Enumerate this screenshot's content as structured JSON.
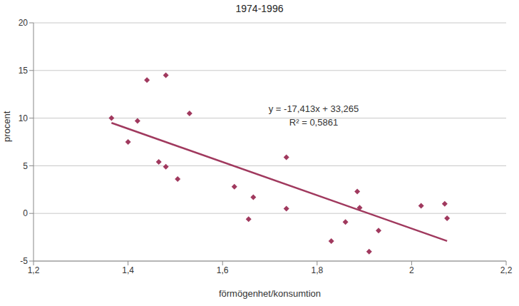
{
  "chart_data": {
    "type": "scatter",
    "title": "1974-1996",
    "x_label": "förmögenhet/konsumtion",
    "y_label": "procent",
    "annotations": [
      "y = -17,413x + 33,265",
      "R² = 0,5861"
    ],
    "series": [
      {
        "type": "scatter",
        "marker": "diamond",
        "color": "#a0395e",
        "x": [
          1.365,
          1.4,
          1.42,
          1.44,
          1.465,
          1.48,
          1.48,
          1.505,
          1.53,
          1.625,
          1.655,
          1.665,
          1.735,
          1.735,
          1.83,
          1.86,
          1.885,
          1.89,
          1.91,
          1.93,
          2.02,
          2.07,
          2.075
        ],
        "values": [
          10.0,
          7.5,
          9.7,
          14.0,
          5.4,
          4.9,
          14.5,
          3.6,
          10.5,
          2.8,
          -0.6,
          1.7,
          5.9,
          0.5,
          -2.9,
          -0.9,
          2.3,
          0.6,
          -4.0,
          -1.8,
          0.8,
          1.0,
          -0.5
        ]
      },
      {
        "type": "line",
        "line_style": "solid",
        "color": "#a0395e",
        "x": [
          1.365,
          2.075
        ],
        "values": [
          9.5,
          -2.9
        ]
      }
    ],
    "xlim": [
      1.2,
      2.2
    ],
    "xticks": [
      {
        "value": 1.2,
        "label": "1,2"
      },
      {
        "value": 1.4,
        "label": "1,4"
      },
      {
        "value": 1.6,
        "label": "1,6"
      },
      {
        "value": 1.8,
        "label": "1,8"
      },
      {
        "value": 2,
        "label": "2"
      },
      {
        "value": 2.2,
        "label": "2,2"
      }
    ],
    "ylim": [
      -5,
      20
    ],
    "yticks": [
      -5,
      0,
      5,
      10,
      15,
      20
    ],
    "grid": true
  }
}
